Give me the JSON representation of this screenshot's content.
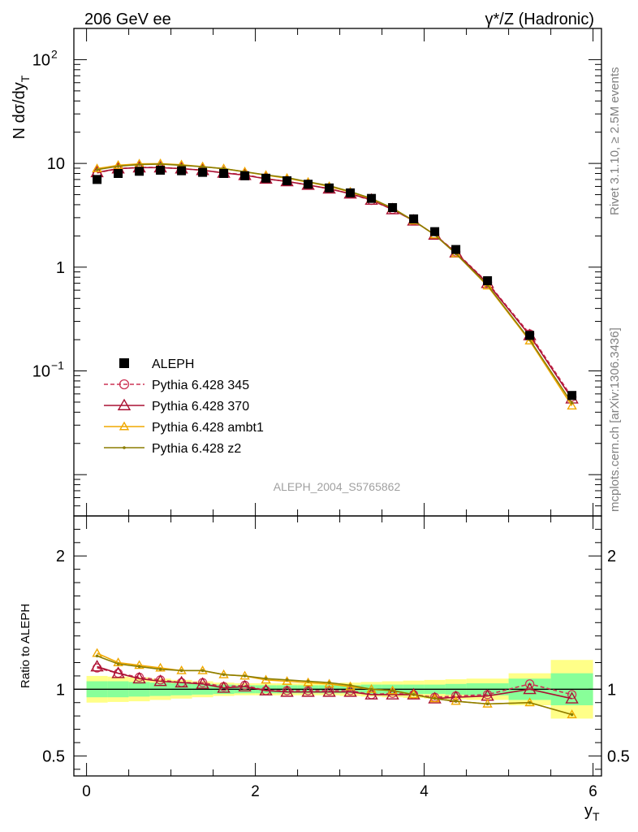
{
  "header": {
    "left": "206 GeV ee",
    "right": "γ*/Z (Hadronic)"
  },
  "side": {
    "rivet": "Rivet 3.1.10, ≥ 2.5M events",
    "mcplots": "mcplots.cern.ch [arXiv:1306.3436]"
  },
  "watermark": "ALEPH_2004_S5765862",
  "chart_data": {
    "type": "line",
    "xlabel": "y_T",
    "ylabel": "N dσ/dy_T",
    "ratio_ylabel": "Ratio to ALEPH",
    "xlim": [
      -0.15,
      6.1
    ],
    "ylim": [
      0.004,
      200
    ],
    "yscale": "log",
    "ratio_ylim": [
      0.35,
      2.3
    ],
    "legend_position": "middle-left",
    "xticks": [
      "0",
      "2",
      "4",
      "6"
    ],
    "yticks": [
      "10^-1",
      "1",
      "10",
      "10^2"
    ],
    "ratio_yticks": [
      "0.5",
      "1",
      "2"
    ],
    "x": [
      0.125,
      0.375,
      0.625,
      0.875,
      1.125,
      1.375,
      1.625,
      1.875,
      2.125,
      2.375,
      2.625,
      2.875,
      3.125,
      3.375,
      3.625,
      3.875,
      4.125,
      4.375,
      4.75,
      5.25,
      5.75
    ],
    "bin_edges": [
      0,
      0.25,
      0.5,
      0.75,
      1.0,
      1.25,
      1.5,
      1.75,
      2.0,
      2.25,
      2.5,
      2.75,
      3.0,
      3.25,
      3.5,
      3.75,
      4.0,
      4.25,
      4.5,
      5.0,
      5.5,
      6.0
    ],
    "ratio_band_inner": [
      0.06,
      0.06,
      0.055,
      0.05,
      0.045,
      0.04,
      0.035,
      0.03,
      0.03,
      0.03,
      0.03,
      0.03,
      0.03,
      0.035,
      0.035,
      0.035,
      0.035,
      0.04,
      0.045,
      0.08,
      0.12
    ],
    "ratio_band_outer": [
      0.1,
      0.095,
      0.09,
      0.08,
      0.07,
      0.06,
      0.05,
      0.045,
      0.045,
      0.045,
      0.045,
      0.045,
      0.05,
      0.055,
      0.06,
      0.065,
      0.07,
      0.075,
      0.08,
      0.12,
      0.22
    ],
    "series": [
      {
        "name": "ALEPH",
        "color": "#000000",
        "marker": "square",
        "line": "none",
        "values": [
          7.0,
          8.0,
          8.4,
          8.6,
          8.5,
          8.2,
          8.0,
          7.6,
          7.2,
          6.8,
          6.3,
          5.8,
          5.2,
          4.6,
          3.75,
          2.92,
          2.2,
          1.48,
          0.74,
          0.22,
          0.058
        ],
        "ratio": [
          1,
          1,
          1,
          1,
          1,
          1,
          1,
          1,
          1,
          1,
          1,
          1,
          1,
          1,
          1,
          1,
          1,
          1,
          1,
          1,
          1
        ]
      },
      {
        "name": "Pythia 6.428 345",
        "color": "#cc3355",
        "marker": "circle",
        "line": "dashed",
        "values": [
          8.1,
          8.9,
          9.15,
          9.15,
          8.9,
          8.6,
          8.1,
          7.8,
          7.1,
          6.7,
          6.2,
          5.7,
          5.1,
          4.4,
          3.6,
          2.8,
          2.05,
          1.4,
          0.71,
          0.227,
          0.056
        ],
        "ratio": [
          1.16,
          1.12,
          1.09,
          1.07,
          1.05,
          1.05,
          1.02,
          1.03,
          0.99,
          0.99,
          0.99,
          0.99,
          0.99,
          0.96,
          0.97,
          0.96,
          0.94,
          0.95,
          0.96,
          1.04,
          0.96
        ]
      },
      {
        "name": "Pythia 6.428 370",
        "color": "#aa1133",
        "marker": "triangle",
        "line": "solid",
        "values": [
          8.2,
          8.9,
          9.1,
          9.1,
          8.9,
          8.6,
          8.1,
          7.7,
          7.1,
          6.7,
          6.2,
          5.7,
          5.1,
          4.45,
          3.6,
          2.8,
          2.05,
          1.38,
          0.7,
          0.22,
          0.054
        ],
        "ratio": [
          1.17,
          1.12,
          1.08,
          1.06,
          1.05,
          1.04,
          1.01,
          1.02,
          0.99,
          0.98,
          0.98,
          0.98,
          0.98,
          0.96,
          0.96,
          0.96,
          0.93,
          0.94,
          0.95,
          1.0,
          0.93
        ]
      },
      {
        "name": "Pythia 6.428 ambt1",
        "color": "#f0a800",
        "marker": "triangle",
        "line": "solid",
        "values": [
          8.9,
          9.6,
          9.9,
          9.95,
          9.7,
          9.3,
          8.9,
          8.3,
          7.7,
          7.2,
          6.6,
          6.0,
          5.3,
          4.55,
          3.7,
          2.8,
          2.05,
          1.35,
          0.66,
          0.195,
          0.046
        ],
        "ratio": [
          1.27,
          1.2,
          1.18,
          1.16,
          1.14,
          1.14,
          1.11,
          1.1,
          1.07,
          1.06,
          1.05,
          1.04,
          1.02,
          1.0,
          0.99,
          0.96,
          0.93,
          0.91,
          0.89,
          0.9,
          0.81
        ]
      },
      {
        "name": "Pythia 6.428 z2",
        "color": "#8b7d00",
        "marker": "dot",
        "line": "solid",
        "values": [
          8.7,
          9.4,
          9.75,
          9.85,
          9.6,
          9.3,
          8.9,
          8.3,
          7.75,
          7.3,
          6.65,
          6.1,
          5.35,
          4.6,
          3.7,
          2.8,
          2.05,
          1.35,
          0.67,
          0.2,
          0.049
        ],
        "ratio": [
          1.25,
          1.19,
          1.17,
          1.15,
          1.14,
          1.14,
          1.11,
          1.1,
          1.08,
          1.07,
          1.06,
          1.05,
          1.03,
          1.0,
          0.99,
          0.96,
          0.93,
          0.91,
          0.89,
          0.9,
          0.81
        ]
      }
    ]
  }
}
